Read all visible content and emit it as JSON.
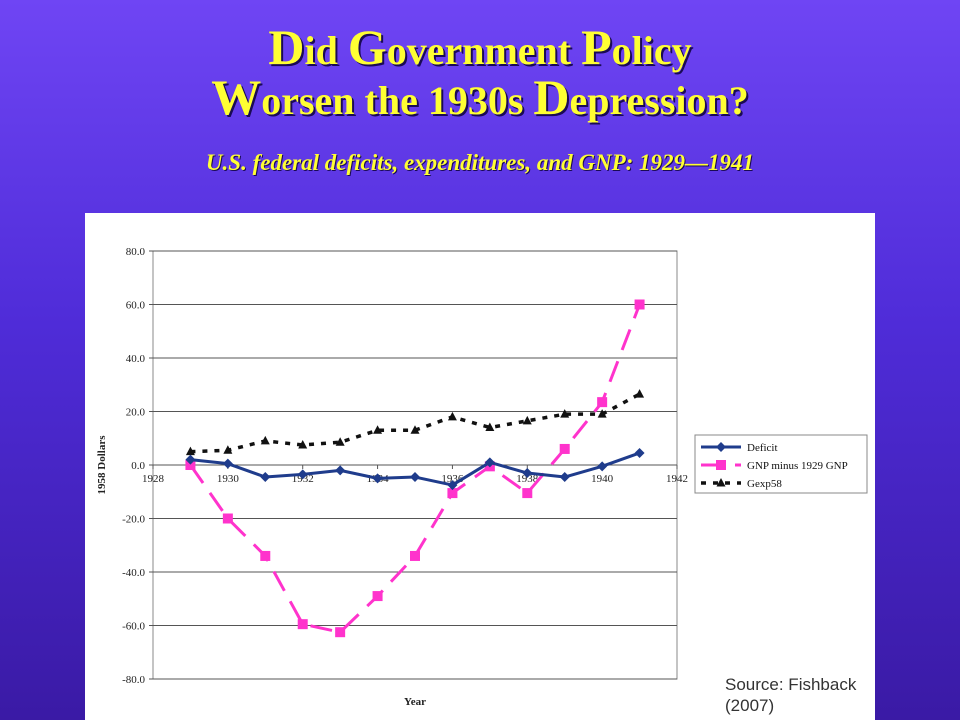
{
  "slide": {
    "title_line1": [
      {
        "cap": "D",
        "rest": "id "
      },
      {
        "cap": "G",
        "rest": "overnment "
      },
      {
        "cap": "P",
        "rest": "olicy"
      }
    ],
    "title_line2": [
      {
        "cap": "W",
        "rest": "orsen the 1930s "
      },
      {
        "cap": "D",
        "rest": "epression?"
      }
    ],
    "subtitle": "U.S. federal deficits, expenditures, and GNP: 1929—1941",
    "source": "Source: Fishback (2007)"
  },
  "colors": {
    "deficit": "#1f3c8c",
    "gnp": "#ff33cc",
    "gexp": "#111111",
    "title": "#ffff33"
  },
  "chart_data": {
    "type": "line",
    "xlabel": "Year",
    "ylabel": "1958 Dollars",
    "xlim": [
      1928,
      1942
    ],
    "ylim": [
      -80,
      80
    ],
    "xticks": [
      "1928",
      "1930",
      "1932",
      "1934",
      "1936",
      "1938",
      "1940",
      "1942"
    ],
    "yticks": [
      "80.0",
      "60.0",
      "40.0",
      "20.0",
      "0.0",
      "-20.0",
      "-40.0",
      "-60.0",
      "-80.0"
    ],
    "grid": true,
    "legend_position": "right",
    "series": [
      {
        "name": "Deficit",
        "style": "solid",
        "marker": "diamond",
        "x": [
          1929,
          1930,
          1931,
          1932,
          1933,
          1934,
          1935,
          1936,
          1937,
          1938,
          1939,
          1940,
          1941
        ],
        "y": [
          2.0,
          0.5,
          -4.5,
          -3.5,
          -2.0,
          -5.0,
          -4.5,
          -7.5,
          1.0,
          -3.0,
          -4.5,
          -0.5,
          4.5
        ]
      },
      {
        "name": "GNP minus 1929 GNP",
        "style": "dashed",
        "marker": "square",
        "x": [
          1929,
          1930,
          1931,
          1932,
          1933,
          1934,
          1935,
          1936,
          1937,
          1938,
          1939,
          1940,
          1941
        ],
        "y": [
          0.0,
          -20.0,
          -34.0,
          -59.5,
          -62.5,
          -49.0,
          -34.0,
          -10.5,
          -0.5,
          -10.5,
          6.0,
          23.5,
          60.0
        ]
      },
      {
        "name": "Gexp58",
        "style": "dotted",
        "marker": "triangle",
        "x": [
          1929,
          1930,
          1931,
          1932,
          1933,
          1934,
          1935,
          1936,
          1937,
          1938,
          1939,
          1940,
          1941
        ],
        "y": [
          5.0,
          5.5,
          9.0,
          7.5,
          8.5,
          13.0,
          13.0,
          18.0,
          14.0,
          16.5,
          19.0,
          19.0,
          26.5
        ]
      }
    ]
  }
}
